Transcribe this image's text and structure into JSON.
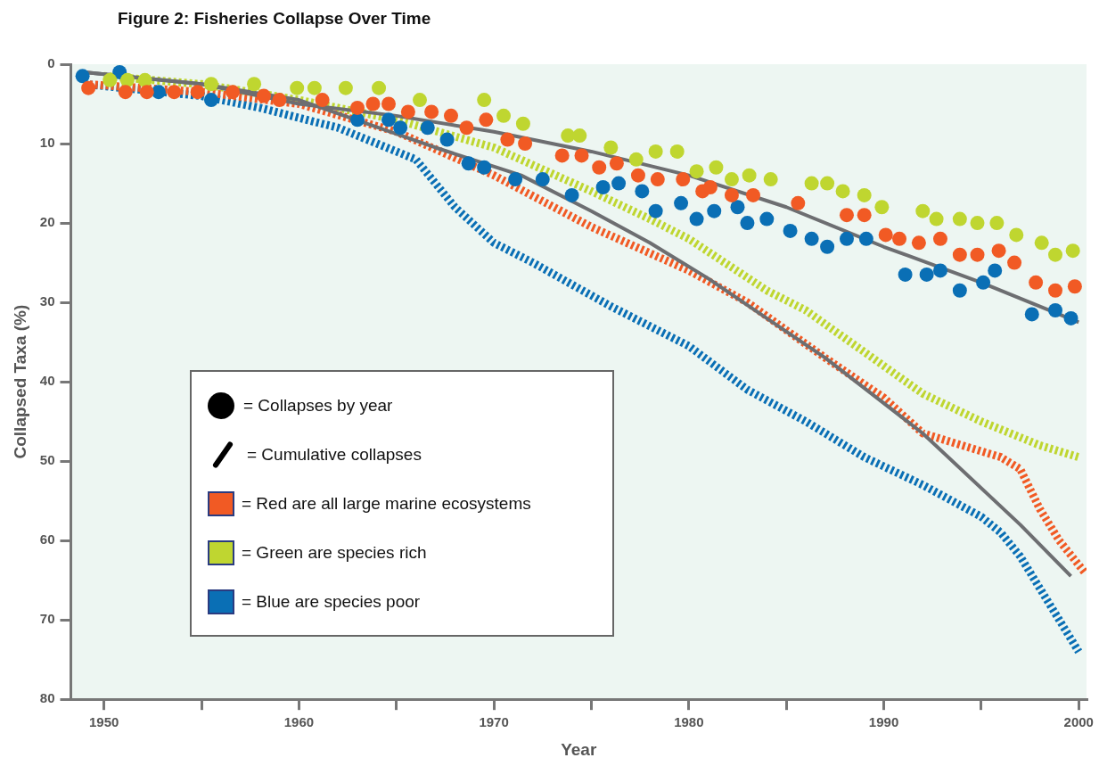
{
  "chart_data": {
    "type": "scatter",
    "title": "Figure 2: Fisheries Collapse Over Time",
    "xlabel": "Year",
    "ylabel": "Collapsed Taxa (%)",
    "xlim": [
      1948.3,
      2000.4
    ],
    "ylim": [
      80,
      0
    ],
    "xticks": [
      1950,
      {
        "value": 1955,
        "label": null
      },
      1960,
      {
        "value": 1965,
        "label": null
      },
      1970,
      {
        "value": 1975,
        "label": null
      },
      1980,
      {
        "value": 1985,
        "label": null
      },
      1990,
      {
        "value": 1995,
        "label": null
      },
      2000
    ],
    "yticks": [
      0,
      10,
      20,
      30,
      40,
      50,
      60,
      70,
      80
    ],
    "grid": false,
    "legend": "left",
    "marker": "circle",
    "annotations": [
      "= Collapses by year",
      "= Cumulative collapses"
    ],
    "series": [
      {
        "type": "line",
        "line_style": "dashed",
        "marker": "none",
        "name": "= Red are all large marine ecosystems",
        "color": "#f15a24",
        "x": [
          1949,
          1955,
          1960,
          1965,
          1970,
          1975,
          1980,
          1983,
          1987,
          1990,
          1992,
          1994,
          1996,
          1997,
          1998,
          1999,
          2000.3
        ],
        "values": [
          2.5,
          3.5,
          5,
          8.5,
          14,
          20.5,
          26,
          30,
          37,
          42,
          46.5,
          48,
          49.5,
          51,
          56,
          60,
          64
        ]
      },
      {
        "type": "line",
        "line_style": "dashed",
        "marker": "none",
        "name": "= Green are species rich",
        "color": "#bfd630",
        "x": [
          1950,
          1955,
          1960,
          1965,
          1970,
          1975,
          1978,
          1980,
          1984,
          1986,
          1990,
          1992,
          1995,
          1998,
          2000
        ],
        "values": [
          1.5,
          2.5,
          4.5,
          7,
          10.5,
          16,
          19.5,
          22,
          28.5,
          31,
          38,
          41.5,
          45,
          48,
          49.5
        ]
      },
      {
        "type": "line",
        "line_style": "dashed",
        "marker": "none",
        "name": "= Blue are species poor",
        "color": "#0a6fb5",
        "x": [
          1949,
          1955,
          1958,
          1962,
          1966,
          1968,
          1970,
          1972,
          1976,
          1978,
          1980,
          1983,
          1986,
          1989,
          1992,
          1995,
          1996,
          1997,
          1998,
          1999,
          2000
        ],
        "values": [
          2.5,
          4,
          5.5,
          8,
          12,
          18,
          22.5,
          25,
          30.5,
          33,
          35.5,
          41,
          45,
          49.5,
          53,
          57,
          59,
          62,
          66,
          70,
          74
        ]
      },
      {
        "type": "line",
        "line_style": "solid",
        "marker": "none",
        "color": "#6d6e71",
        "x": [
          1949,
          1955,
          1960,
          1965,
          1970,
          1975,
          1980,
          1985,
          1990,
          1995,
          2000
        ],
        "values": [
          1,
          2.5,
          5,
          6.5,
          8.5,
          11,
          14,
          18,
          23,
          27.5,
          32.5
        ]
      },
      {
        "type": "line",
        "line_style": "solid",
        "marker": "none",
        "color": "#6d6e71",
        "x": [
          1949,
          1955,
          1960,
          1967,
          1971.4,
          1975,
          1978,
          1981,
          1984.6,
          1987,
          1992,
          1997,
          1999.6
        ],
        "values": [
          1,
          2.5,
          4.5,
          10.5,
          14,
          18.5,
          22.5,
          27,
          33,
          37,
          46.5,
          58,
          64.5
        ]
      },
      {
        "color": "#f15a24",
        "x": [
          1949.2,
          1951.1,
          1952.2,
          1953.6,
          1954.8,
          1956.6,
          1958.2,
          1959,
          1961.2,
          1963,
          1963.8,
          1964.6,
          1965.6,
          1966.8,
          1967.8,
          1968.6,
          1969.6,
          1970.7,
          1971.6,
          1973.5,
          1974.5,
          1975.4,
          1976.3,
          1977.4,
          1978.4,
          1979.7,
          1980.7,
          1981.1,
          1982.2,
          1983.3,
          1985.6,
          1988.1,
          1989,
          1990.1,
          1990.8,
          1991.8,
          1992.9,
          1993.9,
          1994.8,
          1995.9,
          1996.7,
          1997.8,
          1998.8,
          1999.8
        ],
        "values": [
          3,
          3.5,
          3.5,
          3.5,
          3.5,
          3.5,
          4,
          4.5,
          4.5,
          5.5,
          5,
          5,
          6,
          6,
          6.5,
          8,
          7,
          9.5,
          10,
          11.5,
          11.5,
          13,
          12.5,
          14,
          14.5,
          14.5,
          16,
          15.5,
          16.5,
          16.5,
          17.5,
          19,
          19,
          21.5,
          22,
          22.5,
          22,
          24,
          24,
          23.5,
          25,
          27.5,
          28.5,
          28
        ]
      },
      {
        "color": "#bfd630",
        "x": [
          1950.3,
          1951.2,
          1952.1,
          1955.5,
          1957.7,
          1959.9,
          1960.8,
          1962.4,
          1964.1,
          1966.2,
          1969.5,
          1970.5,
          1971.5,
          1973.8,
          1974.4,
          1976,
          1977.3,
          1978.3,
          1979.4,
          1980.4,
          1981.4,
          1982.2,
          1983.1,
          1984.2,
          1986.3,
          1987.1,
          1987.9,
          1989,
          1989.9,
          1992,
          1992.7,
          1993.9,
          1994.8,
          1995.8,
          1996.8,
          1998.1,
          1998.8,
          1999.7
        ],
        "values": [
          2,
          2,
          2,
          2.5,
          2.5,
          3,
          3,
          3,
          3,
          4.5,
          4.5,
          6.5,
          7.5,
          9,
          9,
          10.5,
          12,
          11,
          11,
          13.5,
          13,
          14.5,
          14,
          14.5,
          15,
          15,
          16,
          16.5,
          18,
          18.5,
          19.5,
          19.5,
          20,
          20,
          21.5,
          22.5,
          24,
          23.5
        ]
      },
      {
        "color": "#0a6fb5",
        "x": [
          1948.9,
          1950.8,
          1952.8,
          1955.5,
          1963,
          1964.6,
          1965.2,
          1966.6,
          1967.6,
          1968.7,
          1969.5,
          1971.1,
          1972.5,
          1974,
          1975.6,
          1976.4,
          1977.6,
          1978.3,
          1979.6,
          1980.4,
          1981.3,
          1982.5,
          1983,
          1984,
          1985.2,
          1986.3,
          1987.1,
          1988.1,
          1989.1,
          1991.1,
          1992.2,
          1992.9,
          1993.9,
          1995.1,
          1995.7,
          1997.6,
          1998.8,
          1999.6
        ],
        "values": [
          1.5,
          1,
          3.5,
          4.5,
          7,
          7,
          8,
          8,
          9.5,
          12.5,
          13,
          14.5,
          14.5,
          16.5,
          15.5,
          15,
          16,
          18.5,
          17.5,
          19.5,
          18.5,
          18,
          20,
          19.5,
          21,
          22,
          23,
          22,
          22,
          26.5,
          26.5,
          26,
          28.5,
          27.5,
          26,
          31.5,
          31,
          32
        ]
      }
    ]
  }
}
